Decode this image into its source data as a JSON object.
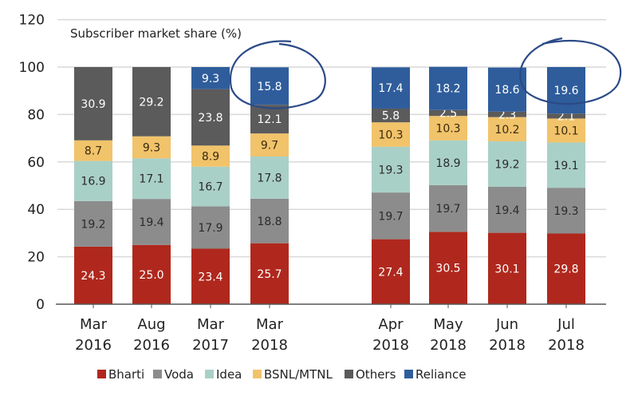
{
  "chart_data": {
    "type": "bar",
    "stacked": true,
    "title": "Subscriber market share (%)",
    "xlabel": "",
    "ylabel": "",
    "ylim": [
      0,
      120
    ],
    "yticks": [
      0,
      20,
      40,
      60,
      80,
      100,
      120
    ],
    "grid": true,
    "legend_position": "bottom",
    "categories": [
      [
        "Mar",
        "2016"
      ],
      [
        "Aug",
        "2016"
      ],
      [
        "Mar",
        "2017"
      ],
      [
        "Mar",
        "2018"
      ],
      [
        "Apr",
        "2018"
      ],
      [
        "May",
        "2018"
      ],
      [
        "Jun",
        "2018"
      ],
      [
        "Jul",
        "2018"
      ]
    ],
    "series": [
      {
        "name": "Bharti",
        "color": "#b0281d",
        "label_color": "#ffffff",
        "values": [
          24.3,
          25.0,
          23.4,
          25.7,
          27.4,
          30.5,
          30.1,
          29.8
        ]
      },
      {
        "name": "Voda",
        "color": "#8c8c8c",
        "label_color": "#2b2b2b",
        "values": [
          19.2,
          19.4,
          17.9,
          18.8,
          19.7,
          19.7,
          19.4,
          19.3
        ]
      },
      {
        "name": "Idea",
        "color": "#a9d0c7",
        "label_color": "#2b2b2b",
        "values": [
          16.9,
          17.1,
          16.7,
          17.8,
          19.3,
          18.9,
          19.2,
          19.1
        ]
      },
      {
        "name": "BSNL/MTNL",
        "color": "#f1c36a",
        "label_color": "#3a2a10",
        "values": [
          8.7,
          9.3,
          8.9,
          9.7,
          10.3,
          10.3,
          10.2,
          10.1
        ]
      },
      {
        "name": "Others",
        "color": "#5b5b5b",
        "label_color": "#ffffff",
        "values": [
          30.9,
          29.2,
          23.8,
          12.1,
          5.8,
          2.5,
          2.3,
          2.1
        ]
      },
      {
        "name": "Reliance",
        "color": "#2f5d9c",
        "label_color": "#ffffff",
        "values": [
          null,
          null,
          9.3,
          15.8,
          17.4,
          18.2,
          18.6,
          19.6
        ]
      }
    ],
    "annotations": [
      "hand-drawn circle around Mar 2018 Reliance/Others",
      "hand-drawn circle around Jul 2018 Reliance"
    ]
  }
}
